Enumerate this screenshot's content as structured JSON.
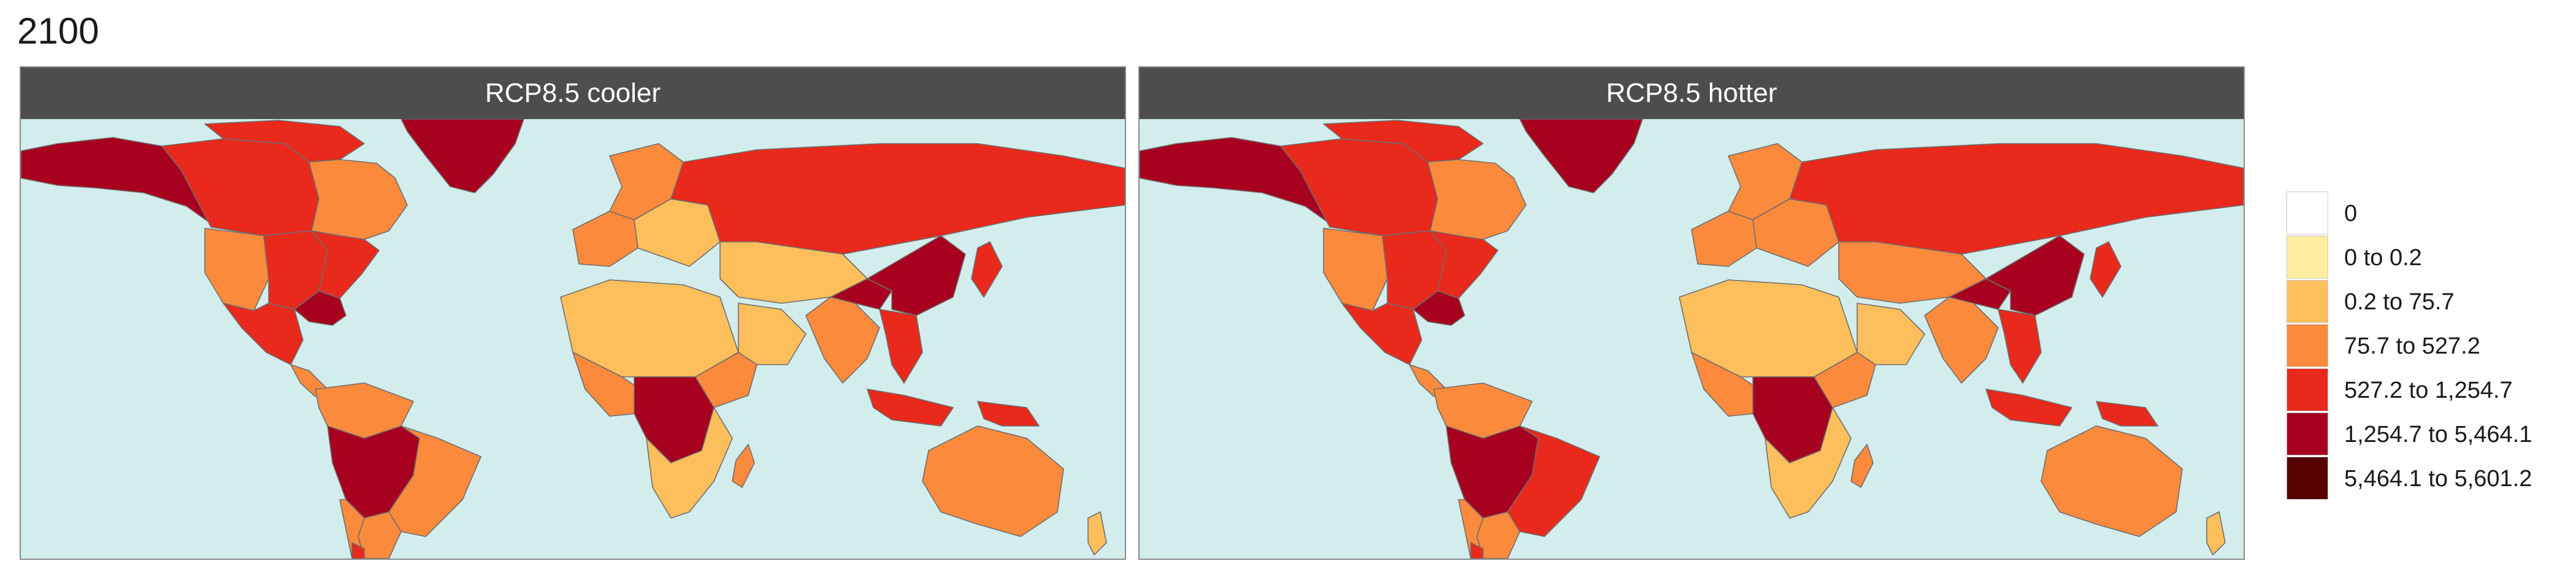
{
  "title": "2100",
  "colors": {
    "ocean": "#d3ecec",
    "strip": "#4d4d4d",
    "border": "#6e6e6e",
    "legend": [
      "#ffffff",
      "#ffeda0",
      "#fdbf5c",
      "#fc8a3c",
      "#e8291c",
      "#a8001f",
      "#560000"
    ]
  },
  "legend": {
    "items": [
      {
        "label": "0",
        "color": "#ffffff"
      },
      {
        "label": "0 to 0.2",
        "color": "#ffeda0"
      },
      {
        "label": "0.2 to 75.7",
        "color": "#fdbf5c"
      },
      {
        "label": "75.7 to 527.2",
        "color": "#fc8a3c"
      },
      {
        "label": "527.2 to 1,254.7",
        "color": "#e8291c"
      },
      {
        "label": "1,254.7 to 5,464.1",
        "color": "#a8001f"
      },
      {
        "label": "5,464.1 to 5,601.2",
        "color": "#560000"
      }
    ]
  },
  "panels": [
    {
      "label": "RCP8.5 cooler",
      "regions": [
        {
          "name": "alaska",
          "class": 5
        },
        {
          "name": "canada-west",
          "class": 4
        },
        {
          "name": "canada-north",
          "class": 4
        },
        {
          "name": "canada-east",
          "class": 3
        },
        {
          "name": "greenland",
          "class": 5
        },
        {
          "name": "usa-west",
          "class": 3
        },
        {
          "name": "usa-central",
          "class": 4
        },
        {
          "name": "usa-east",
          "class": 4
        },
        {
          "name": "usa-southeast",
          "class": 5
        },
        {
          "name": "mexico",
          "class": 4
        },
        {
          "name": "central-america",
          "class": 3
        },
        {
          "name": "northern-south-america",
          "class": 3
        },
        {
          "name": "amazon-basin",
          "class": 5
        },
        {
          "name": "brazil-east",
          "class": 3
        },
        {
          "name": "southern-cone",
          "class": 3
        },
        {
          "name": "chile",
          "class": 3
        },
        {
          "name": "patagonia",
          "class": 4
        },
        {
          "name": "western-europe",
          "class": 3
        },
        {
          "name": "scandinavia",
          "class": 3
        },
        {
          "name": "eastern-europe",
          "class": 2
        },
        {
          "name": "siberia",
          "class": 4
        },
        {
          "name": "north-africa",
          "class": 2
        },
        {
          "name": "west-africa",
          "class": 3
        },
        {
          "name": "congo-basin",
          "class": 5
        },
        {
          "name": "east-africa",
          "class": 3
        },
        {
          "name": "southern-africa",
          "class": 2
        },
        {
          "name": "madagascar",
          "class": 3
        },
        {
          "name": "arabia",
          "class": 2
        },
        {
          "name": "central-asia",
          "class": 2
        },
        {
          "name": "south-asia",
          "class": 3
        },
        {
          "name": "himalaya-east",
          "class": 5
        },
        {
          "name": "east-china",
          "class": 5
        },
        {
          "name": "southeast-asia",
          "class": 4
        },
        {
          "name": "japan",
          "class": 4
        },
        {
          "name": "indonesia",
          "class": 4
        },
        {
          "name": "new-guinea",
          "class": 4
        },
        {
          "name": "australia",
          "class": 3
        },
        {
          "name": "new-zealand",
          "class": 2
        }
      ]
    },
    {
      "label": "RCP8.5 hotter",
      "regions": [
        {
          "name": "alaska",
          "class": 5
        },
        {
          "name": "canada-west",
          "class": 4
        },
        {
          "name": "canada-north",
          "class": 4
        },
        {
          "name": "canada-east",
          "class": 3
        },
        {
          "name": "greenland",
          "class": 5
        },
        {
          "name": "usa-west",
          "class": 3
        },
        {
          "name": "usa-central",
          "class": 4
        },
        {
          "name": "usa-east",
          "class": 4
        },
        {
          "name": "usa-southeast",
          "class": 5
        },
        {
          "name": "mexico",
          "class": 4
        },
        {
          "name": "central-america",
          "class": 3
        },
        {
          "name": "northern-south-america",
          "class": 3
        },
        {
          "name": "amazon-basin",
          "class": 5
        },
        {
          "name": "brazil-east",
          "class": 4
        },
        {
          "name": "southern-cone",
          "class": 3
        },
        {
          "name": "chile",
          "class": 3
        },
        {
          "name": "patagonia",
          "class": 4
        },
        {
          "name": "western-europe",
          "class": 3
        },
        {
          "name": "scandinavia",
          "class": 3
        },
        {
          "name": "eastern-europe",
          "class": 3
        },
        {
          "name": "siberia",
          "class": 4
        },
        {
          "name": "north-africa",
          "class": 2
        },
        {
          "name": "west-africa",
          "class": 3
        },
        {
          "name": "congo-basin",
          "class": 5
        },
        {
          "name": "east-africa",
          "class": 3
        },
        {
          "name": "southern-africa",
          "class": 2
        },
        {
          "name": "madagascar",
          "class": 3
        },
        {
          "name": "arabia",
          "class": 2
        },
        {
          "name": "central-asia",
          "class": 3
        },
        {
          "name": "south-asia",
          "class": 3
        },
        {
          "name": "himalaya-east",
          "class": 5
        },
        {
          "name": "east-china",
          "class": 5
        },
        {
          "name": "southeast-asia",
          "class": 4
        },
        {
          "name": "japan",
          "class": 4
        },
        {
          "name": "indonesia",
          "class": 4
        },
        {
          "name": "new-guinea",
          "class": 4
        },
        {
          "name": "australia",
          "class": 3
        },
        {
          "name": "new-zealand",
          "class": 2
        }
      ]
    }
  ]
}
